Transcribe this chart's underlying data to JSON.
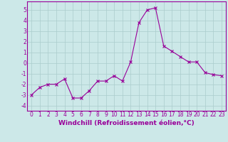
{
  "x": [
    0,
    1,
    2,
    3,
    4,
    5,
    6,
    7,
    8,
    9,
    10,
    11,
    12,
    13,
    14,
    15,
    16,
    17,
    18,
    19,
    20,
    21,
    22,
    23
  ],
  "y": [
    -3.0,
    -2.3,
    -2.0,
    -2.0,
    -1.5,
    -3.3,
    -3.3,
    -2.6,
    -1.7,
    -1.7,
    -1.2,
    -1.7,
    0.1,
    3.8,
    5.0,
    5.2,
    1.6,
    1.1,
    0.6,
    0.1,
    0.1,
    -0.9,
    -1.1,
    -1.2
  ],
  "line_color": "#990099",
  "marker": "x",
  "marker_color": "#990099",
  "background_color": "#cce8e8",
  "grid_color": "#aacccc",
  "ylabel_ticks": [
    5,
    4,
    3,
    2,
    1,
    0,
    -1,
    -2,
    -3,
    -4
  ],
  "ylim": [
    -4.5,
    5.8
  ],
  "xlim": [
    -0.5,
    23.5
  ],
  "xlabel": "Windchill (Refroidissement éolien,°C)",
  "tick_fontsize": 5.5,
  "label_fontsize": 6.5
}
